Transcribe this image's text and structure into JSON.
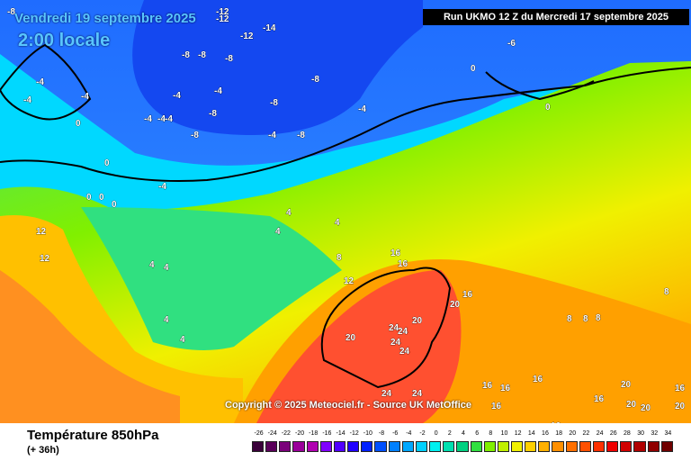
{
  "header": {
    "date": "Vendredi 19 septembre 2025",
    "time": "2:00 locale",
    "run": "Run UKMO 12 Z du Mercredi 17 septembre 2025"
  },
  "footer": {
    "copyright": "Copyright © 2025 Meteociel.fr - Source UK MetOffice",
    "title": "Température 850hPa",
    "subtitle": "(+ 36h)"
  },
  "scale": {
    "labels": [
      "-26",
      "-24",
      "-22",
      "-20",
      "-18",
      "-16",
      "-14",
      "-12",
      "-10",
      "-8",
      "-6",
      "-4",
      "-2",
      "0",
      "2",
      "4",
      "6",
      "8",
      "10",
      "12",
      "14",
      "16",
      "18",
      "20",
      "22",
      "24",
      "26",
      "28",
      "30",
      "32",
      "34"
    ],
    "colors": [
      "#3a003a",
      "#5a005a",
      "#7a007a",
      "#9a009a",
      "#b000b0",
      "#8000ff",
      "#5000ff",
      "#2000ff",
      "#0020ff",
      "#0050ff",
      "#0080ff",
      "#00a8ff",
      "#00d0ff",
      "#00f0f0",
      "#00e0b0",
      "#00d080",
      "#30e040",
      "#80f000",
      "#c0f000",
      "#f0f000",
      "#ffd000",
      "#ffb000",
      "#ff9000",
      "#ff7000",
      "#ff5000",
      "#ff3000",
      "#f00000",
      "#d00000",
      "#b00000",
      "#900000",
      "#700000"
    ]
  },
  "map": {
    "colors": {
      "ocean_deep": "#2a7cff",
      "cold_blue": "#00a8ff",
      "cyan": "#00d8ff",
      "green_cool": "#30e060",
      "green": "#80f000",
      "yellow": "#f0f000",
      "orange": "#ffb000",
      "red": "#ff5a30",
      "land_outline": "#000000"
    },
    "labels": [
      "-8",
      "-12",
      "-12",
      "-14",
      "-12",
      "-8",
      "-8",
      "-8",
      "-8",
      "-8",
      "-8",
      "-8",
      "-8",
      "-6",
      "-4",
      "-4",
      "-4",
      "-4",
      "-4",
      "-4",
      "-4",
      "-4",
      "-4",
      "-4",
      "-4",
      "0",
      "0",
      "0",
      "0",
      "0",
      "0",
      "0",
      "4",
      "4",
      "4",
      "4",
      "4",
      "4",
      "4",
      "8",
      "8",
      "8",
      "8",
      "8",
      "12",
      "12",
      "12",
      "16",
      "16",
      "16",
      "16",
      "16",
      "16",
      "16",
      "16",
      "16",
      "16",
      "20",
      "20",
      "20",
      "20",
      "20",
      "20",
      "20",
      "24",
      "24",
      "24",
      "24",
      "24",
      "24"
    ]
  }
}
